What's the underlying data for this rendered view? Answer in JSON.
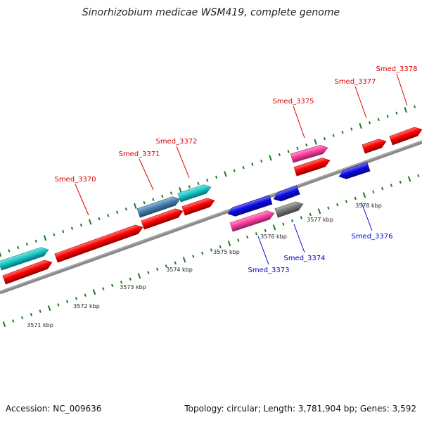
{
  "title": "Sinorhizobium medicae WSM419, complete genome",
  "footer": {
    "accession": "Accession: NC_009636",
    "stats": "Topology: circular; Length: 3,781,904 bp; Genes: 3,592"
  },
  "colors": {
    "backbone": "#8a8a8a",
    "tick": "#1e7a1e",
    "forward_label": "#dd0000",
    "reverse_label": "#0000cc",
    "red": "#ff0000",
    "cyan": "#14c8c8",
    "steelblue": "#4682b4",
    "blue": "#0a0ae6",
    "magenta": "#ff3fa0",
    "gray": "#787878"
  },
  "kbp_labels": [
    "3571 kbp",
    "3572 kbp",
    "3573 kbp",
    "3574 kbp",
    "3575 kbp",
    "3576 kbp",
    "3577 kbp",
    "3578 kbp"
  ],
  "gene_labels": {
    "forward": [
      "Smed_3370",
      "Smed_3371",
      "Smed_3372",
      "Smed_3375",
      "Smed_3377",
      "Smed_3378"
    ],
    "reverse": [
      "Smed_3373",
      "Smed_3374",
      "Smed_3376"
    ]
  },
  "genes": [
    {
      "color": "cyan",
      "strand": "forward"
    },
    {
      "color": "red",
      "strand": "forward"
    },
    {
      "color": "red",
      "strand": "forward"
    },
    {
      "color": "steelblue",
      "strand": "forward"
    },
    {
      "color": "red",
      "strand": "forward"
    },
    {
      "color": "cyan",
      "strand": "forward"
    },
    {
      "color": "red",
      "strand": "forward"
    },
    {
      "color": "magenta",
      "strand": "forward"
    },
    {
      "color": "red",
      "strand": "forward"
    },
    {
      "color": "red",
      "strand": "forward"
    },
    {
      "color": "red",
      "strand": "forward"
    },
    {
      "color": "blue",
      "strand": "reverse"
    },
    {
      "color": "magenta",
      "strand": "reverse"
    },
    {
      "color": "blue",
      "strand": "reverse"
    },
    {
      "color": "gray",
      "strand": "reverse"
    },
    {
      "color": "blue",
      "strand": "reverse"
    }
  ]
}
